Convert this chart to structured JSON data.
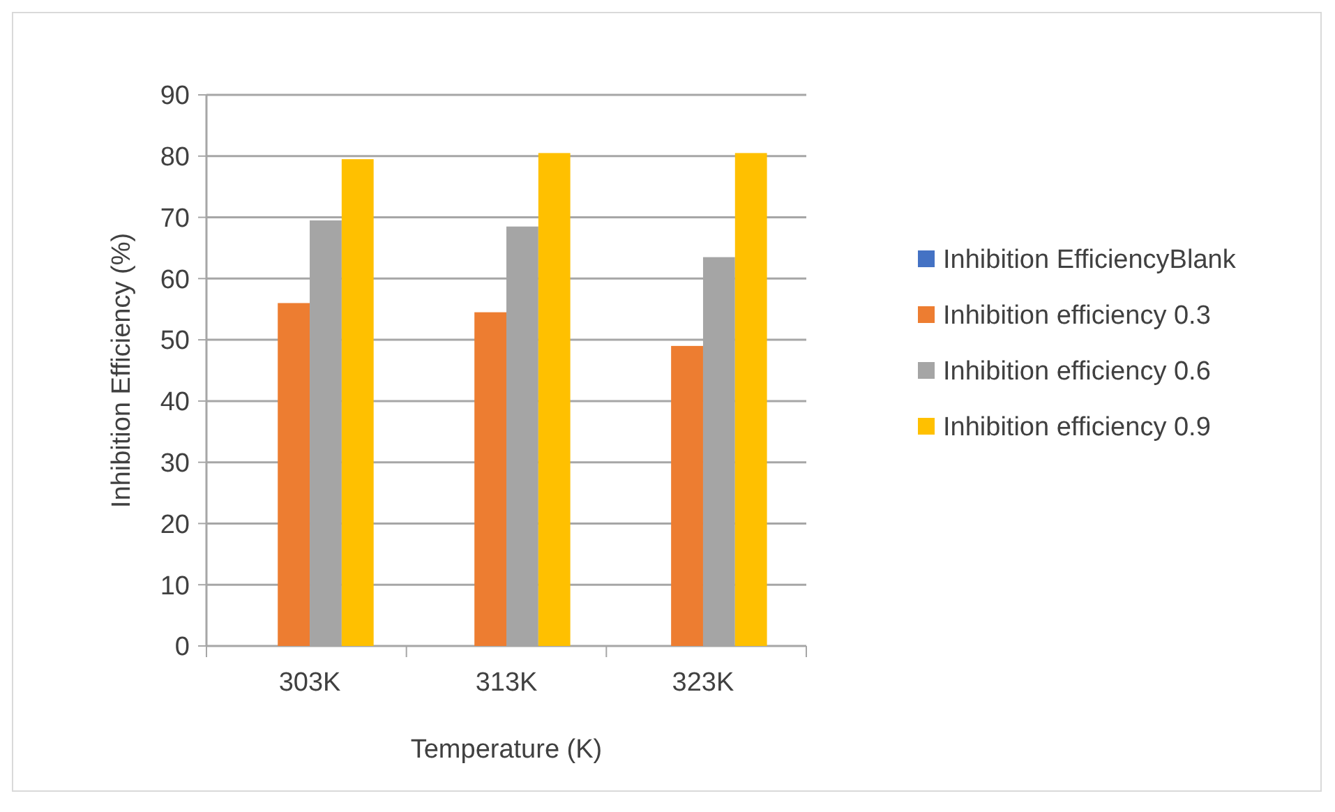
{
  "chart_data": {
    "type": "bar",
    "xlabel": "Temperature (K)",
    "ylabel": "Inhibition Efficiency (%)",
    "categories": [
      "303K",
      "313K",
      "323K"
    ],
    "series": [
      {
        "name": "Inhibition EfficiencyBlank",
        "color": "#4472c4",
        "values": [
          0,
          0,
          0
        ]
      },
      {
        "name": "Inhibition efficiency 0.3",
        "color": "#ed7d31",
        "values": [
          56,
          54.5,
          49
        ]
      },
      {
        "name": "Inhibition efficiency 0.6",
        "color": "#a5a5a5",
        "values": [
          69.5,
          68.5,
          63.5
        ]
      },
      {
        "name": "Inhibition efficiency 0.9",
        "color": "#ffc000",
        "values": [
          79.5,
          80.5,
          80.5
        ]
      }
    ],
    "ylim": [
      0,
      90
    ],
    "yticks": [
      0,
      10,
      20,
      30,
      40,
      50,
      60,
      70,
      80,
      90
    ],
    "grid": "y",
    "legend": "right"
  }
}
